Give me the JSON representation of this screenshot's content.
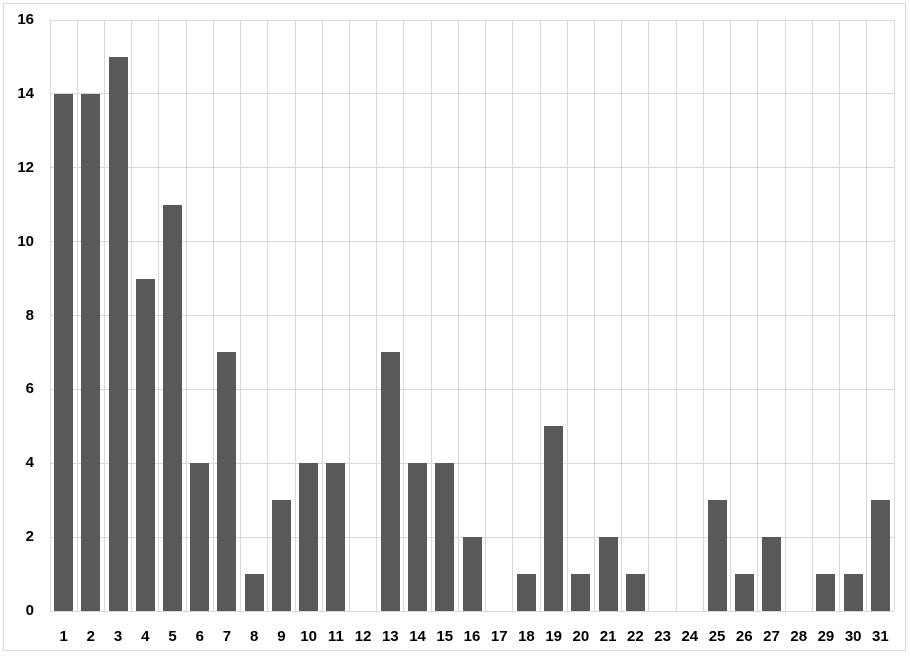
{
  "chart_data": {
    "type": "bar",
    "title": "",
    "xlabel": "",
    "ylabel": "",
    "categories": [
      "1",
      "2",
      "3",
      "4",
      "5",
      "6",
      "7",
      "8",
      "9",
      "10",
      "11",
      "12",
      "13",
      "14",
      "15",
      "16",
      "17",
      "18",
      "19",
      "20",
      "21",
      "22",
      "23",
      "24",
      "25",
      "26",
      "27",
      "28",
      "29",
      "30",
      "31"
    ],
    "values": [
      14,
      14,
      15,
      9,
      11,
      4,
      7,
      1,
      3,
      4,
      4,
      0,
      7,
      4,
      4,
      2,
      0,
      1,
      5,
      1,
      2,
      1,
      0,
      0,
      3,
      1,
      2,
      0,
      1,
      1,
      3
    ],
    "ylim": [
      0,
      16
    ],
    "yticks": [
      0,
      2,
      4,
      6,
      8,
      10,
      12,
      14,
      16
    ],
    "grid": true,
    "legend_position": "none",
    "colors": {
      "bar_fill": "#595959",
      "gridline": "#d9d9d9",
      "frame_border": "#d9d9d9",
      "tick_label_text": "#000000",
      "background": "#ffffff"
    }
  }
}
